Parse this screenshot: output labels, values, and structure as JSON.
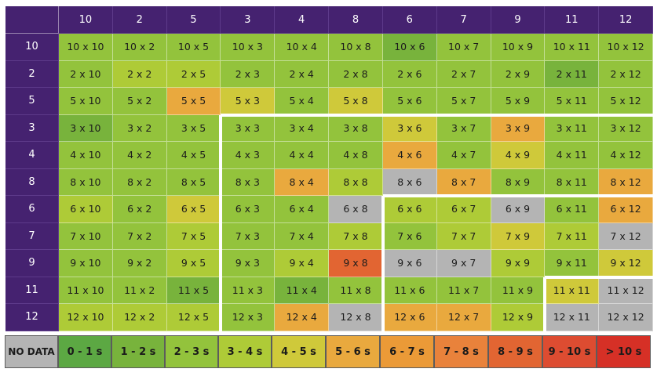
{
  "columns": [
    "10",
    "2",
    "5",
    "3",
    "4",
    "8",
    "6",
    "7",
    "9",
    "11",
    "12"
  ],
  "rows": [
    "10",
    "2",
    "5",
    "3",
    "4",
    "8",
    "6",
    "7",
    "9",
    "11",
    "12"
  ],
  "colors": {
    "nodata": "#b4b4b4",
    "c0": "#5ca843",
    "c1": "#78b33c",
    "c2": "#93c33c",
    "c3": "#aecb37",
    "c4": "#cfc93a",
    "c5": "#e9a93e",
    "c6": "#eb9a37",
    "c7": "#e9823b",
    "c8": "#e26532",
    "c9": "#dd4c31",
    "c10": "#d63026",
    "header": "#452270"
  },
  "cells": [
    [
      "10 x 10",
      "10 x 2",
      "10 x 5",
      "10 x 3",
      "10 x 4",
      "10 x 8",
      "10 x 6",
      "10 x 7",
      "10 x 9",
      "10 x 11",
      "10 x 12"
    ],
    [
      "2 x 10",
      "2 x 2",
      "2 x 5",
      "2 x 3",
      "2 x 4",
      "2 x 8",
      "2 x 6",
      "2 x 7",
      "2 x 9",
      "2 x 11",
      "2 x 12"
    ],
    [
      "5 x 10",
      "5 x 2",
      "5 x 5",
      "5 x 3",
      "5 x 4",
      "5 x 8",
      "5 x 6",
      "5 x 7",
      "5 x 9",
      "5 x 11",
      "5 x 12"
    ],
    [
      "3 x 10",
      "3 x 2",
      "3 x 5",
      "3 x 3",
      "3 x 4",
      "3 x 8",
      "3 x 6",
      "3 x 7",
      "3 x 9",
      "3 x 11",
      "3 x 12"
    ],
    [
      "4 x 10",
      "4 x 2",
      "4 x 5",
      "4 x 3",
      "4 x 4",
      "4 x 8",
      "4 x 6",
      "4 x 7",
      "4 x 9",
      "4 x 11",
      "4 x 12"
    ],
    [
      "8 x 10",
      "8 x 2",
      "8 x 5",
      "8 x 3",
      "8 x 4",
      "8 x 8",
      "8 x 6",
      "8 x 7",
      "8 x 9",
      "8 x 11",
      "8 x 12"
    ],
    [
      "6 x 10",
      "6 x 2",
      "6 x 5",
      "6 x 3",
      "6 x 4",
      "6 x 8",
      "6 x 6",
      "6 x 7",
      "6 x 9",
      "6 x 11",
      "6 x 12"
    ],
    [
      "7 x 10",
      "7 x 2",
      "7 x 5",
      "7 x 3",
      "7 x 4",
      "7 x 8",
      "7 x 6",
      "7 x 7",
      "7 x 9",
      "7 x 11",
      "7 x 12"
    ],
    [
      "9 x 10",
      "9 x 2",
      "9 x 5",
      "9 x 3",
      "9 x 4",
      "9 x 8",
      "9 x 6",
      "9 x 7",
      "9 x 9",
      "9 x 11",
      "9 x 12"
    ],
    [
      "11 x 10",
      "11 x 2",
      "11 x 5",
      "11 x 3",
      "11 x 4",
      "11 x 8",
      "11 x 6",
      "11 x 7",
      "11 x 9",
      "11 x 11",
      "11 x 12"
    ],
    [
      "12 x 10",
      "12 x 2",
      "12 x 5",
      "12 x 3",
      "12 x 4",
      "12 x 8",
      "12 x 6",
      "12 x 7",
      "12 x 9",
      "12 x 11",
      "12 x 12"
    ]
  ],
  "cell_colors": [
    [
      "c2",
      "c2",
      "c2",
      "c2",
      "c2",
      "c2",
      "c1",
      "c2",
      "c2",
      "c2",
      "c2"
    ],
    [
      "c2",
      "c3",
      "c3",
      "c2",
      "c2",
      "c2",
      "c2",
      "c2",
      "c2",
      "c1",
      "c2"
    ],
    [
      "c2",
      "c2",
      "c5",
      "c4",
      "c2",
      "c4",
      "c2",
      "c2",
      "c2",
      "c2",
      "c2"
    ],
    [
      "c1",
      "c2",
      "c2",
      "c2",
      "c2",
      "c2",
      "c4",
      "c2",
      "c5",
      "c2",
      "c2"
    ],
    [
      "c2",
      "c2",
      "c2",
      "c2",
      "c2",
      "c2",
      "c5",
      "c2",
      "c4",
      "c2",
      "c2"
    ],
    [
      "c2",
      "c2",
      "c2",
      "c2",
      "c5",
      "c3",
      "nodata",
      "c5",
      "c2",
      "c2",
      "c5"
    ],
    [
      "c3",
      "c2",
      "c4",
      "c2",
      "c2",
      "nodata",
      "c3",
      "c3",
      "nodata",
      "c2",
      "c5"
    ],
    [
      "c2",
      "c2",
      "c3",
      "c2",
      "c2",
      "c3",
      "c2",
      "c3",
      "c4",
      "c3",
      "nodata"
    ],
    [
      "c2",
      "c2",
      "c3",
      "c2",
      "c3",
      "c8",
      "nodata",
      "nodata",
      "c3",
      "c2",
      "c4"
    ],
    [
      "c2",
      "c2",
      "c1",
      "c2",
      "c1",
      "c2",
      "c2",
      "c2",
      "c2",
      "c4",
      "nodata"
    ],
    [
      "c3",
      "c3",
      "c3",
      "c2",
      "c5",
      "nodata",
      "c5",
      "c5",
      "c3",
      "nodata",
      "nodata"
    ]
  ],
  "legend": [
    {
      "label": "NO DATA",
      "color": "nodata"
    },
    {
      "label": "0 - 1 s",
      "color": "c0"
    },
    {
      "label": "1 - 2 s",
      "color": "c1"
    },
    {
      "label": "2 - 3 s",
      "color": "c2"
    },
    {
      "label": "3 - 4 s",
      "color": "c3"
    },
    {
      "label": "4 - 5 s",
      "color": "c4"
    },
    {
      "label": "5 - 6 s",
      "color": "c5"
    },
    {
      "label": "6 - 7 s",
      "color": "c6"
    },
    {
      "label": "7 - 8 s",
      "color": "c7"
    },
    {
      "label": "8 - 9 s",
      "color": "c8"
    },
    {
      "label": "9 - 10 s",
      "color": "c9"
    },
    {
      "label": "> 10 s",
      "color": "c10"
    }
  ]
}
